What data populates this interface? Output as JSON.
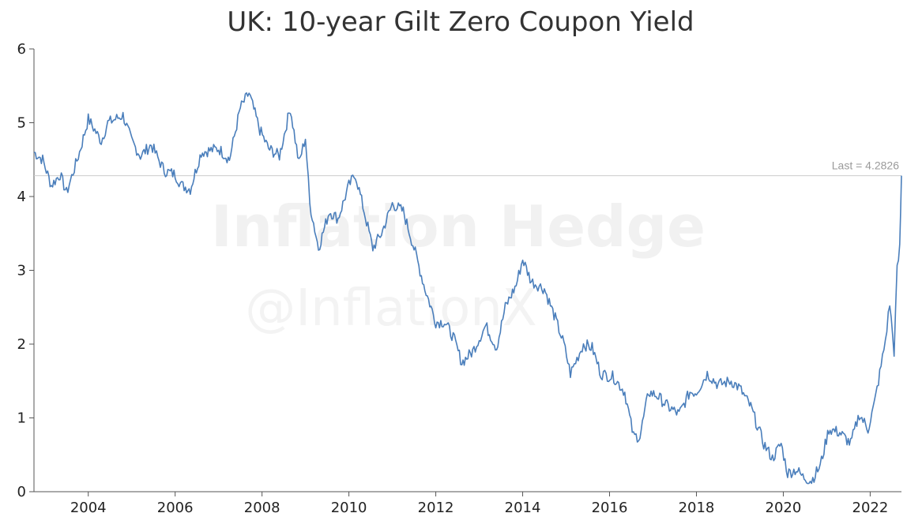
{
  "watermark": {
    "line1": "Inflation Hedge",
    "line2": "@InflationX"
  },
  "chart_data": {
    "type": "line",
    "title": "UK: 10-year Gilt Zero Coupon Yield",
    "xlabel": "",
    "ylabel": "",
    "xlim": [
      2002.75,
      2022.72
    ],
    "ylim": [
      0,
      6
    ],
    "x_ticks": [
      "2004",
      "2006",
      "2008",
      "2010",
      "2012",
      "2014",
      "2016",
      "2018",
      "2020",
      "2022"
    ],
    "y_ticks": [
      "0",
      "1",
      "2",
      "3",
      "4",
      "5",
      "6"
    ],
    "grid": false,
    "legend": "none",
    "line_color": "#4a7ebb",
    "reference_line": {
      "value": 4.2826,
      "label": "Last = 4.2826",
      "color": "#cccccc"
    },
    "series": [
      {
        "x": [
          2002.75,
          2002.95,
          2003.15,
          2003.35,
          2003.5,
          2003.8,
          2004.0,
          2004.3,
          2004.45,
          2004.8,
          2005.0,
          2005.2,
          2005.45,
          2005.75,
          2006.0,
          2006.15,
          2006.35,
          2006.6,
          2007.0,
          2007.25,
          2007.5,
          2007.7,
          2007.95,
          2008.15,
          2008.4,
          2008.65,
          2008.85,
          2009.0,
          2009.1,
          2009.3,
          2009.55,
          2009.75,
          2010.0,
          2010.15,
          2010.35,
          2010.55,
          2010.75,
          2011.0,
          2011.25,
          2011.5,
          2011.75,
          2012.0,
          2012.2,
          2012.4,
          2012.6,
          2012.85,
          2013.15,
          2013.4,
          2013.6,
          2013.85,
          2014.0,
          2014.2,
          2014.5,
          2014.75,
          2014.95,
          2015.1,
          2015.4,
          2015.6,
          2015.8,
          2016.1,
          2016.35,
          2016.55,
          2016.7,
          2016.9,
          2017.1,
          2017.35,
          2017.6,
          2017.85,
          2018.0,
          2018.25,
          2018.5,
          2018.8,
          2019.0,
          2019.25,
          2019.55,
          2019.75,
          2019.95,
          2020.1,
          2020.3,
          2020.45,
          2020.65,
          2020.85,
          2021.05,
          2021.3,
          2021.55,
          2021.75,
          2021.95,
          2022.1,
          2022.25,
          2022.35,
          2022.45,
          2022.55,
          2022.62,
          2022.68,
          2022.72
        ],
        "values": [
          4.6,
          4.5,
          4.15,
          4.3,
          4.05,
          4.6,
          5.05,
          4.75,
          5.0,
          5.1,
          4.75,
          4.55,
          4.7,
          4.35,
          4.3,
          4.15,
          4.1,
          4.6,
          4.65,
          4.5,
          5.2,
          5.4,
          4.9,
          4.65,
          4.55,
          5.2,
          4.45,
          4.8,
          3.9,
          3.3,
          3.8,
          3.7,
          4.15,
          4.3,
          3.8,
          3.3,
          3.5,
          3.9,
          3.8,
          3.3,
          2.75,
          2.3,
          2.3,
          2.1,
          1.75,
          1.9,
          2.25,
          1.95,
          2.5,
          2.8,
          3.15,
          2.85,
          2.75,
          2.35,
          2.0,
          1.6,
          2.0,
          1.95,
          1.6,
          1.55,
          1.35,
          0.75,
          0.75,
          1.35,
          1.3,
          1.15,
          1.05,
          1.35,
          1.35,
          1.6,
          1.45,
          1.5,
          1.4,
          1.15,
          0.65,
          0.45,
          0.65,
          0.25,
          0.3,
          0.2,
          0.15,
          0.35,
          0.85,
          0.8,
          0.65,
          1.05,
          0.85,
          1.2,
          1.7,
          2.05,
          2.55,
          1.9,
          3.0,
          3.3,
          4.2826
        ]
      }
    ]
  }
}
